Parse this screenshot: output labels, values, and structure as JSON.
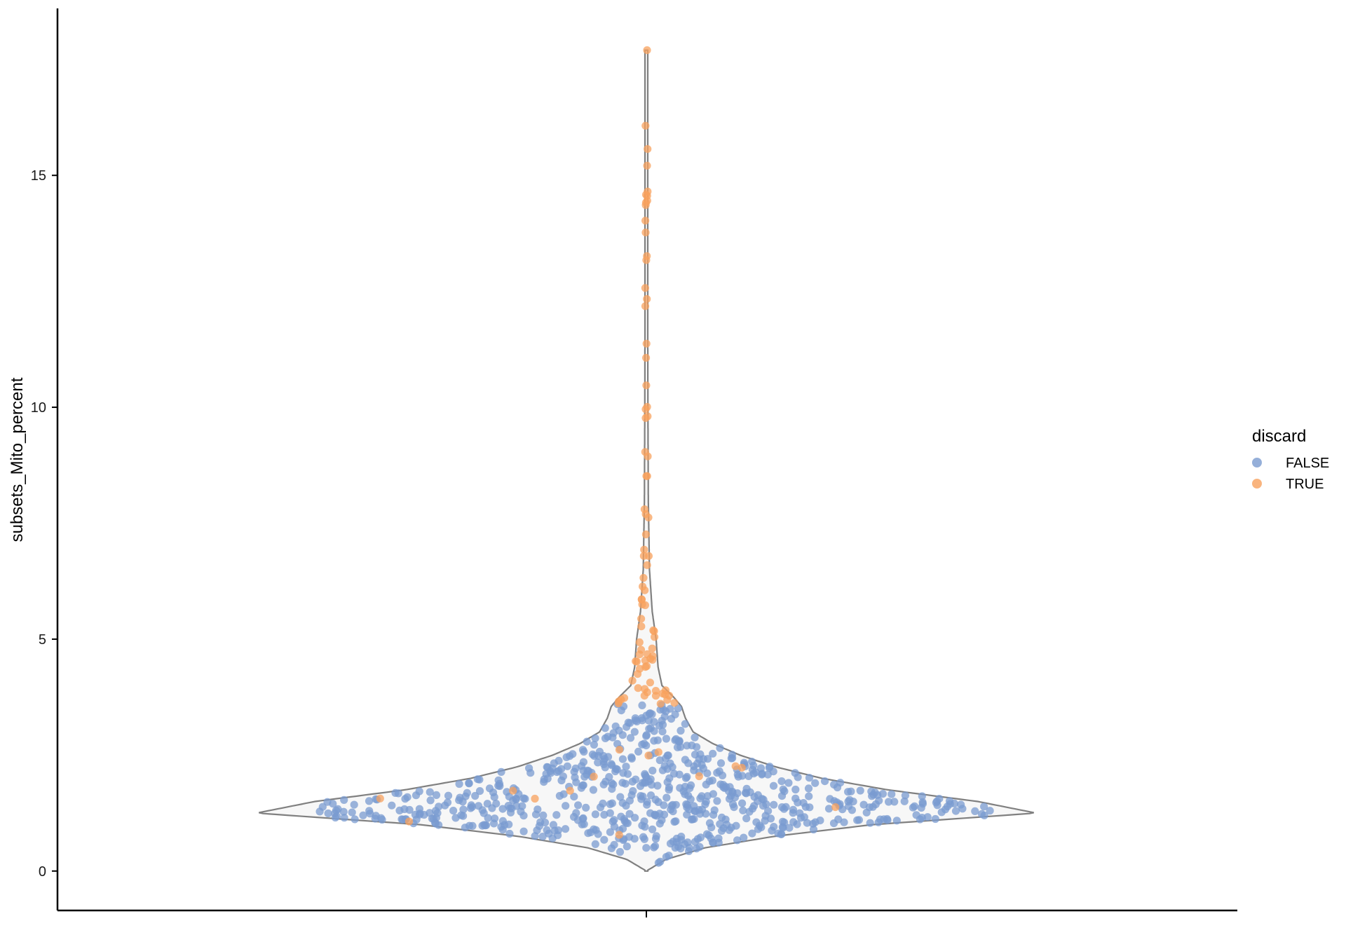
{
  "chart_data": {
    "type": "violin",
    "ylabel": "subsets_Mito_percent",
    "xlabel": "",
    "ylim": [
      -0.85,
      18.6
    ],
    "yticks": [
      0,
      5,
      10,
      15
    ],
    "ytick_labels": [
      "0",
      "5",
      "10",
      "15"
    ],
    "grid": false,
    "legend": {
      "title": "discard",
      "position": "right",
      "entries": [
        {
          "label": "FALSE",
          "color": "#7A9BD0"
        },
        {
          "label": "TRUE",
          "color": "#F8A15E"
        }
      ]
    },
    "violin_outline_color": "#808080",
    "violin_fill_color": "#F7F7F7",
    "violin_density_profile": [
      [
        0.0,
        0.0
      ],
      [
        0.25,
        0.05
      ],
      [
        0.5,
        0.15
      ],
      [
        0.75,
        0.33
      ],
      [
        1.0,
        0.58
      ],
      [
        1.25,
        1.0
      ],
      [
        1.5,
        0.85
      ],
      [
        1.75,
        0.62
      ],
      [
        2.0,
        0.45
      ],
      [
        2.25,
        0.33
      ],
      [
        2.5,
        0.24
      ],
      [
        2.75,
        0.17
      ],
      [
        3.0,
        0.12
      ],
      [
        3.3,
        0.1
      ],
      [
        3.55,
        0.09
      ],
      [
        3.75,
        0.07
      ],
      [
        4.0,
        0.04
      ],
      [
        4.4,
        0.03
      ],
      [
        5.0,
        0.025
      ],
      [
        5.6,
        0.015
      ],
      [
        6.5,
        0.008
      ],
      [
        8.0,
        0.005
      ],
      [
        10.0,
        0.004
      ],
      [
        14.0,
        0.003
      ],
      [
        17.7,
        0.0
      ]
    ],
    "points_false_count": 700,
    "points_true_count": 95,
    "discard_threshold_y": 3.6,
    "y_max_observed": 17.7
  }
}
